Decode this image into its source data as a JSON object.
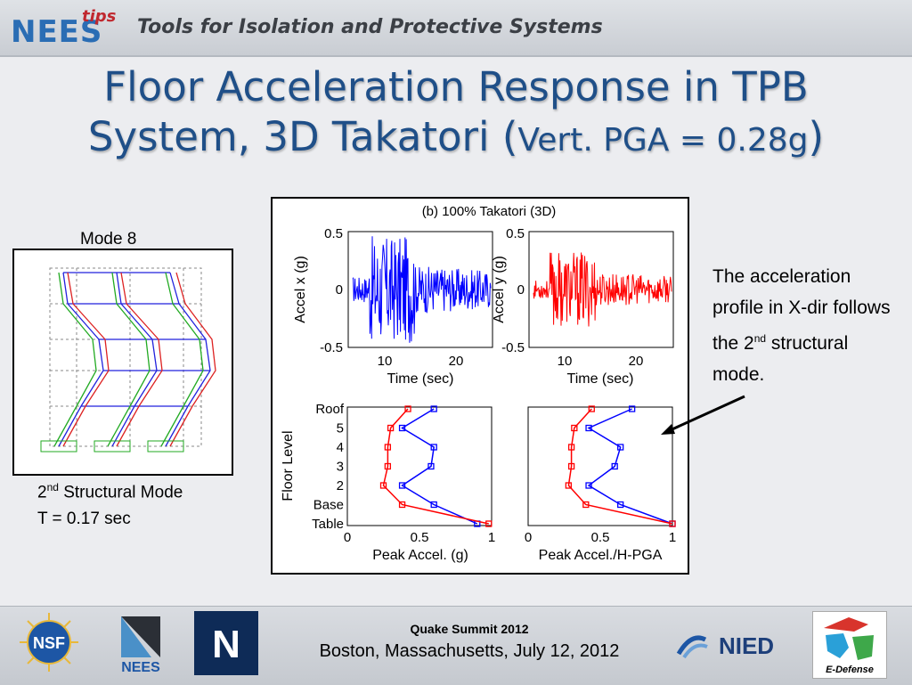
{
  "header": {
    "logo_main": "NEES",
    "logo_tips": "tips",
    "title": "Tools for Isolation and Protective Systems"
  },
  "slide": {
    "title_line1": "Floor Acceleration Response in TPB",
    "title_line2_main": "System, 3D Takatori (",
    "title_line2_small": "Vert. PGA = 0.28g",
    "title_line2_end": ")"
  },
  "mode_panel": {
    "label": "Mode 8",
    "caption_prefix": "2",
    "caption_sup": "nd",
    "caption_rest": " Structural Mode",
    "period": "T = 0.17 sec"
  },
  "plots": {
    "panel_title": "(b) 100% Takatori (3D)",
    "accel_x": {
      "ylabel": "Accel x (g)",
      "xlabel": "Time (sec)",
      "y_ticks": [
        "0.5",
        "0",
        "-0.5"
      ],
      "x_ticks": [
        "10",
        "20"
      ],
      "color": "#0000ff"
    },
    "accel_y": {
      "ylabel": "Accel y (g)",
      "xlabel": "Time (sec)",
      "y_ticks": [
        "0.5",
        "0",
        "-0.5"
      ],
      "x_ticks": [
        "10",
        "20"
      ],
      "color": "#ff0000"
    },
    "peak_accel": {
      "xlabel": "Peak Accel. (g)",
      "ylabel": "Floor Level",
      "levels": [
        "Roof",
        "5",
        "4",
        "3",
        "2",
        "Base",
        "Table"
      ],
      "x_ticks": [
        "0",
        "0.5",
        "1"
      ]
    },
    "peak_ratio": {
      "xlabel": "Peak Accel./H-PGA",
      "x_ticks": [
        "0",
        "0.5",
        "1"
      ]
    }
  },
  "chart_data": [
    {
      "type": "line",
      "ylabel": "Floor Level",
      "xlabel": "Peak Accel. (g)",
      "y_categories": [
        "Table",
        "Base",
        "2",
        "3",
        "4",
        "5",
        "Roof"
      ],
      "xlim": [
        0,
        1
      ],
      "series": [
        {
          "color": "#0000ff",
          "values": [
            0.9,
            0.6,
            0.38,
            0.58,
            0.6,
            0.38,
            0.6
          ]
        },
        {
          "color": "#ff0000",
          "values": [
            0.98,
            0.38,
            0.25,
            0.28,
            0.28,
            0.3,
            0.42
          ]
        }
      ]
    },
    {
      "type": "line",
      "xlabel": "Peak Accel./H-PGA",
      "y_categories": [
        "Table",
        "Base",
        "2",
        "3",
        "4",
        "5",
        "Roof"
      ],
      "xlim": [
        0,
        1
      ],
      "series": [
        {
          "color": "#0000ff",
          "values": [
            1.0,
            0.64,
            0.42,
            0.6,
            0.64,
            0.42,
            0.72
          ]
        },
        {
          "color": "#ff0000",
          "values": [
            1.0,
            0.4,
            0.28,
            0.3,
            0.3,
            0.32,
            0.44
          ]
        }
      ]
    }
  ],
  "note": {
    "line_a": "The acceleration profile in X-dir follows the 2",
    "sup": "nd",
    "line_b": " structural mode."
  },
  "footer": {
    "event": "Quake Summit 2012",
    "location": "Boston, Massachusetts, July 12, 2012",
    "nsf": "NSF",
    "nees": "NEES",
    "nevada": "N",
    "nied": "NIED",
    "edefense": "E-Defense"
  }
}
